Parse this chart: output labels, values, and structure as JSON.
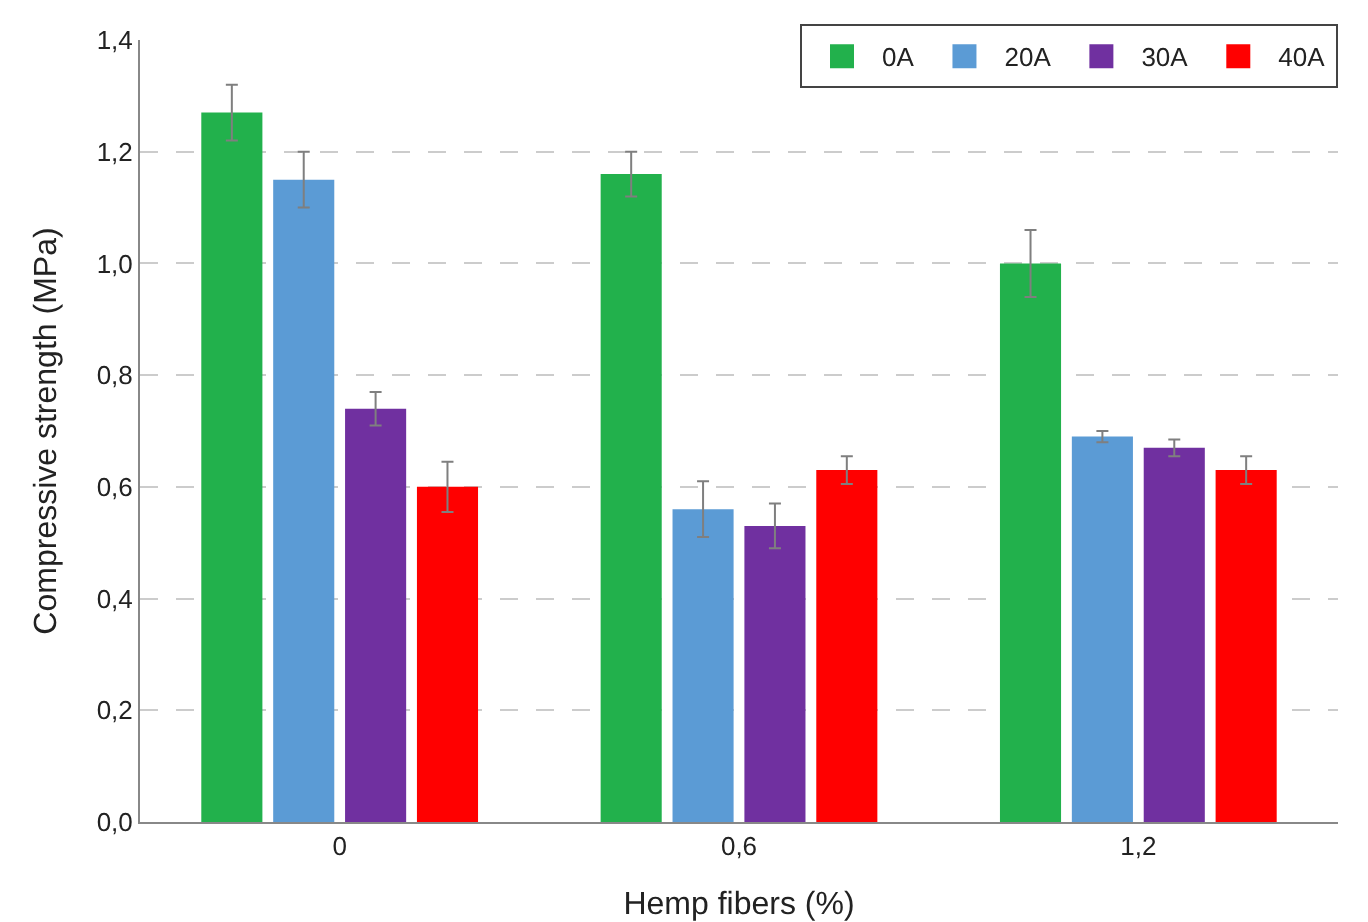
{
  "chart_data": {
    "type": "bar",
    "xlabel": "Hemp fibers (%)",
    "ylabel": "Compressive strength (MPa)",
    "categories": [
      "0",
      "0,6",
      "1,2"
    ],
    "series": [
      {
        "name": "0A",
        "color": "#22b14c",
        "values": [
          1.27,
          1.16,
          1.0
        ],
        "errors": [
          0.05,
          0.04,
          0.06
        ]
      },
      {
        "name": "20A",
        "color": "#5b9bd5",
        "values": [
          1.15,
          0.56,
          0.69
        ],
        "errors": [
          0.05,
          0.05,
          0.01
        ]
      },
      {
        "name": "30A",
        "color": "#7030a0",
        "values": [
          0.74,
          0.53,
          0.67
        ],
        "errors": [
          0.03,
          0.04,
          0.015
        ]
      },
      {
        "name": "40A",
        "color": "#ff0000",
        "values": [
          0.6,
          0.63,
          0.63
        ],
        "errors": [
          0.045,
          0.025,
          0.025
        ]
      }
    ],
    "ylim": [
      0,
      1.4
    ],
    "yticks": [
      {
        "value": 0,
        "label": "0,0"
      },
      {
        "value": 0.2,
        "label": "0,2"
      },
      {
        "value": 0.4,
        "label": "0,4"
      },
      {
        "value": 0.6,
        "label": "0,6"
      },
      {
        "value": 0.8,
        "label": "0,8"
      },
      {
        "value": 1.0,
        "label": "1,0"
      },
      {
        "value": 1.2,
        "label": "1,2"
      },
      {
        "value": 1.4,
        "label": "1,4"
      }
    ],
    "grid": "y",
    "legend": "top right"
  }
}
